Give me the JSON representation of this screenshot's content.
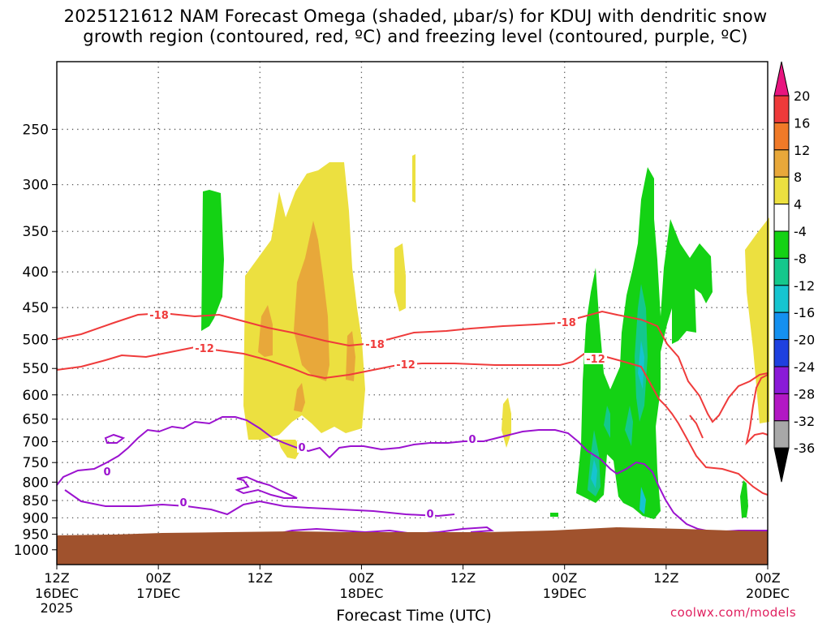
{
  "title": {
    "line1": "2025121612 NAM Forecast Omega (shaded, µbar/s) for KDUJ with dendritic snow",
    "line2": "growth region (contoured, red, ºC) and freezing level (contoured, purple, ºC)"
  },
  "watermark": "coolwx.com/models",
  "chart_data": {
    "type": "time-height cross section",
    "station": "KDUJ",
    "model": "NAM",
    "init": "2025121612",
    "xlabel": "Forecast Time (UTC)",
    "ylabel": "",
    "y_axis": {
      "unit": "hPa",
      "scale": "log-pressure",
      "inverted": true,
      "range": [
        1050,
        200
      ],
      "ticks": [
        250,
        300,
        350,
        400,
        450,
        500,
        550,
        600,
        650,
        700,
        750,
        800,
        850,
        900,
        950,
        1000
      ]
    },
    "x_axis": {
      "range": [
        "2025-12-16T12Z",
        "2025-12-20T00Z"
      ],
      "ticks": [
        {
          "t": "2025-12-16T12Z",
          "label": "12Z",
          "sub": "16DEC",
          "sub2": "2025"
        },
        {
          "t": "2025-12-17T00Z",
          "label": "00Z",
          "sub": "17DEC",
          "sub2": ""
        },
        {
          "t": "2025-12-17T12Z",
          "label": "12Z",
          "sub": "",
          "sub2": ""
        },
        {
          "t": "2025-12-18T00Z",
          "label": "00Z",
          "sub": "18DEC",
          "sub2": ""
        },
        {
          "t": "2025-12-18T12Z",
          "label": "12Z",
          "sub": "",
          "sub2": ""
        },
        {
          "t": "2025-12-19T00Z",
          "label": "00Z",
          "sub": "19DEC",
          "sub2": ""
        },
        {
          "t": "2025-12-19T12Z",
          "label": "12Z",
          "sub": "",
          "sub2": ""
        },
        {
          "t": "2025-12-20T00Z",
          "label": "00Z",
          "sub": "20DEC",
          "sub2": ""
        }
      ]
    },
    "grid": true,
    "colorbar": {
      "unit": "µbar/s",
      "labels": [
        "20",
        "16",
        "12",
        "8",
        "4",
        "-4",
        "-8",
        "-12",
        "-16",
        "-20",
        "-24",
        "-28",
        "-32",
        "-36"
      ],
      "bins": [
        {
          "range": "> 20",
          "color": "#e8157f"
        },
        {
          "range": "16 to 20",
          "color": "#ee3a3a"
        },
        {
          "range": "12 to 16",
          "color": "#f07a28"
        },
        {
          "range": "8 to 12",
          "color": "#e8a83a"
        },
        {
          "range": "4 to 8",
          "color": "#ece040"
        },
        {
          "range": "-4 to 4",
          "color": "#ffffff"
        },
        {
          "range": "-8 to -4",
          "color": "#14d214"
        },
        {
          "range": "-12 to -8",
          "color": "#14c88c"
        },
        {
          "range": "-16 to -12",
          "color": "#16c4d0"
        },
        {
          "range": "-20 to -16",
          "color": "#1490f0"
        },
        {
          "range": "-24 to -20",
          "color": "#1e40e0"
        },
        {
          "range": "-28 to -24",
          "color": "#8a1ad8"
        },
        {
          "range": "-32 to -28",
          "color": "#b218c4"
        },
        {
          "range": "-36 to -32",
          "color": "#a8a8a8"
        },
        {
          "range": "< -36",
          "color": "#000000"
        }
      ]
    },
    "contour_labels": {
      "dendritic": [
        "-18",
        "-12"
      ],
      "freezing": [
        "0"
      ]
    },
    "colors": {
      "ground": "#a0522d",
      "dendritic_line": "#ef3b3b",
      "freezing_line": "#9b12cf",
      "grid": "#555555",
      "watermark": "#e0205f"
    }
  }
}
